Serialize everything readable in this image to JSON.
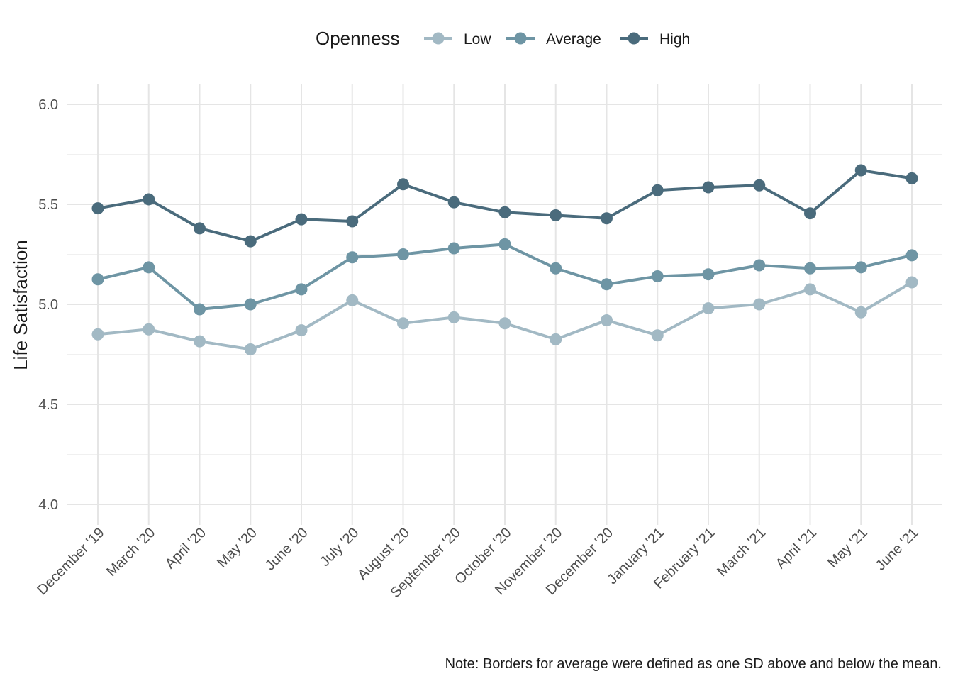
{
  "chart_data": {
    "type": "line",
    "title": "",
    "xlabel": "",
    "ylabel": "Life Satisfaction",
    "caption": "Note: Borders for average were defined as one SD above and below the mean.",
    "legend_title": "Openness",
    "legend_position": "top",
    "grid": true,
    "ylim": [
      3.9,
      6.1
    ],
    "yticks": [
      4.0,
      4.5,
      5.0,
      5.5,
      6.0
    ],
    "ytick_labels": [
      "4.0",
      "4.5",
      "5.0",
      "5.5",
      "6.0"
    ],
    "categories": [
      "December '19",
      "March '20",
      "April '20",
      "May '20",
      "June '20",
      "July '20",
      "August '20",
      "September '20",
      "October '20",
      "November '20",
      "December '20",
      "January '21",
      "February '21",
      "March '21",
      "April '21",
      "May '21",
      "June '21"
    ],
    "series": [
      {
        "name": "Low",
        "color": "#a2b9c4",
        "values": [
          4.85,
          4.875,
          4.815,
          4.775,
          4.87,
          5.02,
          4.905,
          4.935,
          4.905,
          4.825,
          4.92,
          4.845,
          4.98,
          5.0,
          5.075,
          4.96,
          5.11
        ]
      },
      {
        "name": "Average",
        "color": "#6e95a4",
        "values": [
          5.125,
          5.185,
          4.975,
          5.0,
          5.075,
          5.235,
          5.25,
          5.28,
          5.3,
          5.18,
          5.1,
          5.14,
          5.15,
          5.195,
          5.18,
          5.185,
          5.245
        ]
      },
      {
        "name": "High",
        "color": "#4a6b7c",
        "values": [
          5.48,
          5.525,
          5.38,
          5.315,
          5.425,
          5.415,
          5.6,
          5.51,
          5.46,
          5.445,
          5.43,
          5.57,
          5.585,
          5.595,
          5.455,
          5.67,
          5.63
        ]
      }
    ]
  }
}
